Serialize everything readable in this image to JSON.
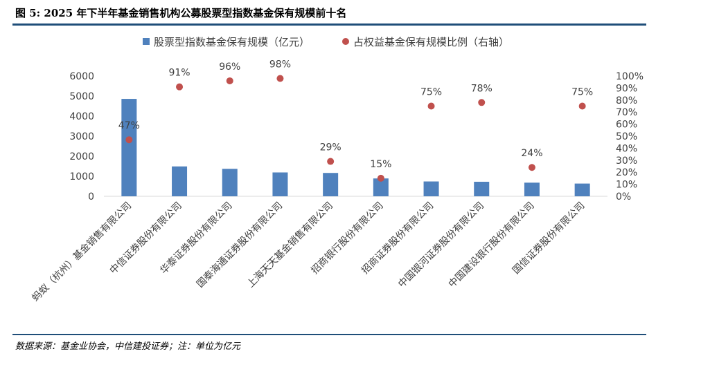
{
  "title": "图 5: 2025 年下半年基金销售机构公募股票型指数基金保有规模前十名",
  "source": "数据来源：基金业协会，中信建投证券；注：单位为亿元",
  "chart_data": {
    "type": "bar+scatter",
    "categories": [
      "蚂蚁（杭州）基金销售有限公司",
      "中信证券股份有限公司",
      "华泰证券股份有限公司",
      "国泰海通证券股份有限公司",
      "上海天天基金销售有限公司",
      "招商银行股份有限公司",
      "招商证券股份有限公司",
      "中国银河证券股份有限公司",
      "中国建设银行股份有限公司",
      "国信证券股份有限公司"
    ],
    "series": [
      {
        "name": "股票型指数基金保有规模（亿元）",
        "type": "bar",
        "axis": "left",
        "color": "#4f81bd",
        "values": [
          4860,
          1490,
          1370,
          1190,
          1165,
          890,
          740,
          725,
          680,
          635
        ]
      },
      {
        "name": "占权益基金保有规模比例（右轴）",
        "type": "scatter",
        "axis": "right",
        "color": "#c0504d",
        "values": [
          47,
          91,
          96,
          98,
          29,
          15,
          75,
          78,
          24,
          75
        ],
        "labels": [
          "47%",
          "91%",
          "96%",
          "98%",
          "29%",
          "15%",
          "75%",
          "78%",
          "24%",
          "75%"
        ]
      }
    ],
    "ylim": [
      0,
      6000
    ],
    "yticks": [
      "0",
      "1000",
      "2000",
      "3000",
      "4000",
      "5000",
      "6000"
    ],
    "y2lim": [
      0,
      100
    ],
    "y2ticks": [
      "0%",
      "10%",
      "20%",
      "30%",
      "40%",
      "50%",
      "60%",
      "70%",
      "80%",
      "90%",
      "100%"
    ],
    "legend": "top",
    "grid": false
  }
}
